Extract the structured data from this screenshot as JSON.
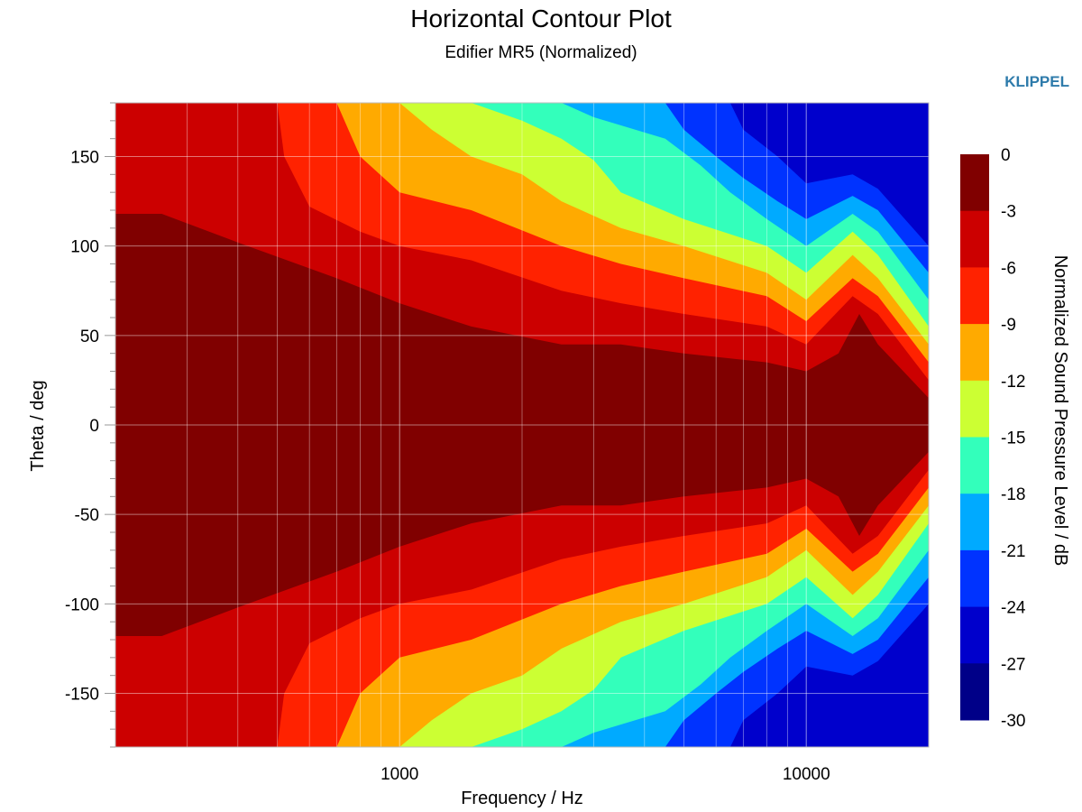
{
  "chart_data": {
    "type": "heatmap",
    "title": "Horizontal Contour Plot",
    "subtitle": "Edifier MR5 (Normalized)",
    "brand": "KLIPPEL",
    "xlabel": "Frequency / Hz",
    "ylabel": "Theta / deg",
    "x_scale": "log",
    "xlim": [
      200,
      20000
    ],
    "ylim": [
      -180,
      180
    ],
    "x_ticks": [
      1000,
      10000
    ],
    "y_ticks": [
      150,
      100,
      50,
      0,
      -50,
      -100,
      -150
    ],
    "grid": true,
    "colorbar": {
      "label": "Normalized Sound Pressure Level / dB",
      "ticks": [
        0,
        -3,
        -6,
        -9,
        -12,
        -15,
        -18,
        -21,
        -24,
        -27,
        -30
      ],
      "levels": [
        {
          "from": -3,
          "to": 0,
          "color": "#800000"
        },
        {
          "from": -6,
          "to": -3,
          "color": "#cc0000"
        },
        {
          "from": -9,
          "to": -6,
          "color": "#ff2200"
        },
        {
          "from": -12,
          "to": -9,
          "color": "#ffaa00"
        },
        {
          "from": -15,
          "to": -12,
          "color": "#ccff33"
        },
        {
          "from": -18,
          "to": -15,
          "color": "#33ffbb"
        },
        {
          "from": -21,
          "to": -18,
          "color": "#00aaff"
        },
        {
          "from": -24,
          "to": -21,
          "color": "#0033ff"
        },
        {
          "from": -27,
          "to": -24,
          "color": "#0000cc"
        },
        {
          "from": -30,
          "to": -27,
          "color": "#000088"
        }
      ]
    },
    "contours": [
      {
        "level": -3,
        "points": [
          [
            200,
            118
          ],
          [
            260,
            118
          ],
          [
            400,
            102
          ],
          [
            700,
            82
          ],
          [
            1000,
            68
          ],
          [
            1500,
            55
          ],
          [
            2500,
            45
          ],
          [
            3500,
            45
          ],
          [
            5000,
            40
          ],
          [
            8000,
            35
          ],
          [
            10000,
            30
          ],
          [
            12000,
            40
          ],
          [
            13500,
            62
          ],
          [
            15000,
            45
          ],
          [
            20000,
            15
          ]
        ]
      },
      {
        "level": -6,
        "points": [
          [
            200,
            180
          ],
          [
            500,
            180
          ],
          [
            520,
            150
          ],
          [
            600,
            122
          ],
          [
            800,
            108
          ],
          [
            1000,
            100
          ],
          [
            1500,
            92
          ],
          [
            2500,
            75
          ],
          [
            3500,
            68
          ],
          [
            5000,
            62
          ],
          [
            8000,
            55
          ],
          [
            10000,
            45
          ],
          [
            13000,
            72
          ],
          [
            15000,
            62
          ],
          [
            20000,
            25
          ]
        ]
      },
      {
        "level": -9,
        "points": [
          [
            200,
            180
          ],
          [
            700,
            180
          ],
          [
            800,
            150
          ],
          [
            1000,
            130
          ],
          [
            1500,
            120
          ],
          [
            2500,
            100
          ],
          [
            3500,
            90
          ],
          [
            5000,
            82
          ],
          [
            8000,
            72
          ],
          [
            10000,
            58
          ],
          [
            13000,
            82
          ],
          [
            15000,
            72
          ],
          [
            20000,
            35
          ]
        ]
      },
      {
        "level": -12,
        "points": [
          [
            200,
            180
          ],
          [
            1000,
            180
          ],
          [
            1200,
            165
          ],
          [
            1500,
            150
          ],
          [
            2000,
            140
          ],
          [
            2500,
            125
          ],
          [
            3500,
            110
          ],
          [
            5000,
            100
          ],
          [
            8000,
            85
          ],
          [
            10000,
            70
          ],
          [
            13000,
            95
          ],
          [
            15000,
            82
          ],
          [
            20000,
            45
          ]
        ]
      },
      {
        "level": -15,
        "points": [
          [
            200,
            180
          ],
          [
            1500,
            180
          ],
          [
            2000,
            170
          ],
          [
            2500,
            160
          ],
          [
            3000,
            148
          ],
          [
            3500,
            130
          ],
          [
            5000,
            115
          ],
          [
            8000,
            100
          ],
          [
            10000,
            85
          ],
          [
            13000,
            108
          ],
          [
            15000,
            95
          ],
          [
            20000,
            55
          ]
        ]
      },
      {
        "level": -18,
        "points": [
          [
            200,
            180
          ],
          [
            2500,
            180
          ],
          [
            3000,
            172
          ],
          [
            4500,
            160
          ],
          [
            5500,
            145
          ],
          [
            6500,
            130
          ],
          [
            8000,
            115
          ],
          [
            10000,
            100
          ],
          [
            13000,
            118
          ],
          [
            15000,
            108
          ],
          [
            20000,
            70
          ]
        ]
      },
      {
        "level": -21,
        "points": [
          [
            200,
            180
          ],
          [
            4500,
            180
          ],
          [
            5000,
            165
          ],
          [
            6000,
            150
          ],
          [
            7000,
            138
          ],
          [
            8500,
            125
          ],
          [
            10000,
            115
          ],
          [
            13000,
            128
          ],
          [
            15000,
            120
          ],
          [
            20000,
            85
          ]
        ]
      },
      {
        "level": -24,
        "points": [
          [
            200,
            180
          ],
          [
            6500,
            180
          ],
          [
            7000,
            165
          ],
          [
            8500,
            150
          ],
          [
            10000,
            135
          ],
          [
            13000,
            140
          ],
          [
            15000,
            132
          ],
          [
            20000,
            100
          ]
        ]
      }
    ],
    "bands_low": [
      {
        "level": -12,
        "points": [
          [
            1150,
            148
          ],
          [
            1300,
            155
          ],
          [
            1600,
            162
          ],
          [
            2000,
            158
          ],
          [
            2500,
            155
          ],
          [
            3000,
            152
          ]
        ]
      },
      {
        "level": -18,
        "points": [
          [
            1400,
            158
          ],
          [
            1600,
            162
          ],
          [
            1900,
            160
          ]
        ]
      }
    ]
  }
}
